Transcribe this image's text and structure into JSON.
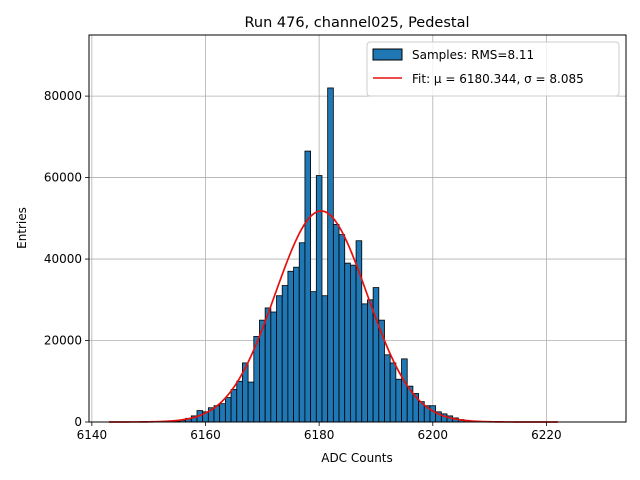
{
  "chart_data": {
    "type": "bar",
    "title": "Run 476, channel025, Pedestal",
    "xlabel": "ADC Counts",
    "ylabel": "Entries",
    "xlim": [
      6139.5,
      6234
    ],
    "ylim": [
      0,
      95000
    ],
    "xticks": [
      6140,
      6160,
      6180,
      6200,
      6220
    ],
    "yticks": [
      0,
      20000,
      40000,
      60000,
      80000
    ],
    "grid": true,
    "legend_placement": "top-right",
    "colors": {
      "bar_fill": "#1f77b4",
      "bar_edge": "#000000",
      "fit_line": "#e4120f",
      "grid": "#b0b0b0"
    },
    "histogram": {
      "name": "Samples: RMS=8.11",
      "bin_width": 1,
      "bins": [
        [
          6154,
          100
        ],
        [
          6155,
          200
        ],
        [
          6156,
          400
        ],
        [
          6157,
          900
        ],
        [
          6158,
          1500
        ],
        [
          6159,
          2800
        ],
        [
          6160,
          2500
        ],
        [
          6161,
          3500
        ],
        [
          6162,
          4000
        ],
        [
          6163,
          4500
        ],
        [
          6164,
          6000
        ],
        [
          6165,
          8000
        ],
        [
          6166,
          10000
        ],
        [
          6167,
          14500
        ],
        [
          6168,
          9800
        ],
        [
          6169,
          21000
        ],
        [
          6170,
          25000
        ],
        [
          6171,
          28000
        ],
        [
          6172,
          27000
        ],
        [
          6173,
          31000
        ],
        [
          6174,
          33500
        ],
        [
          6175,
          37000
        ],
        [
          6176,
          38000
        ],
        [
          6177,
          44000
        ],
        [
          6178,
          66500
        ],
        [
          6179,
          32000
        ],
        [
          6180,
          60500
        ],
        [
          6181,
          31000
        ],
        [
          6182,
          82000
        ],
        [
          6183,
          48500
        ],
        [
          6184,
          46000
        ],
        [
          6185,
          39000
        ],
        [
          6186,
          38500
        ],
        [
          6187,
          44500
        ],
        [
          6188,
          29000
        ],
        [
          6189,
          30000
        ],
        [
          6190,
          33000
        ],
        [
          6191,
          25000
        ],
        [
          6192,
          16500
        ],
        [
          6193,
          14500
        ],
        [
          6194,
          10500
        ],
        [
          6195,
          15500
        ],
        [
          6196,
          8800
        ],
        [
          6197,
          7000
        ],
        [
          6198,
          5000
        ],
        [
          6199,
          4000
        ],
        [
          6200,
          4000
        ],
        [
          6201,
          2500
        ],
        [
          6202,
          2000
        ],
        [
          6203,
          1500
        ],
        [
          6204,
          1000
        ],
        [
          6205,
          600
        ],
        [
          6206,
          400
        ],
        [
          6207,
          200
        ],
        [
          6208,
          100
        ]
      ]
    },
    "fit": {
      "name": "Fit: μ = 6180.344, σ = 8.085",
      "mu": 6180.344,
      "sigma": 8.085,
      "amplitude": 51800,
      "x_range": [
        6143,
        6222
      ]
    }
  }
}
